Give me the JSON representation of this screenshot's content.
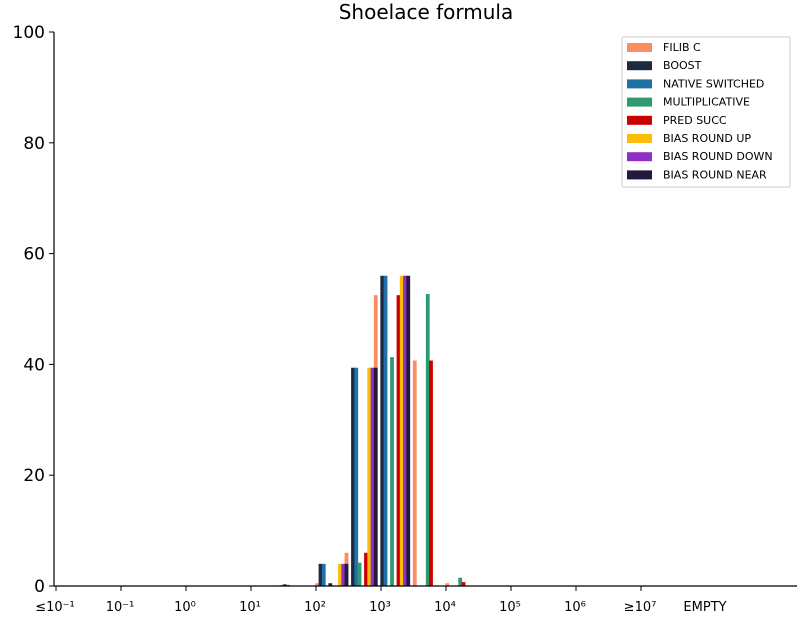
{
  "chart_data": {
    "type": "bar",
    "title": "Shoelace formula",
    "xlabel": "",
    "ylabel": "",
    "ylim": [
      0,
      100
    ],
    "yticks": [
      "0",
      "20",
      "40",
      "60",
      "80",
      "100"
    ],
    "categories": [
      "≤10⁻¹",
      "10⁻¹",
      "10⁰",
      "10¹",
      "10²",
      "10³",
      "10⁴",
      "10⁵",
      "10⁶",
      "≥10⁷",
      "EMPTY"
    ],
    "grid": false,
    "legend_position": "top-right",
    "series": [
      {
        "name": "FILIB C",
        "color": "#fc8d62",
        "points": [
          [
            1.5,
            0.2
          ],
          [
            2.05,
            0.5
          ],
          [
            2.5,
            6.0
          ],
          [
            2.95,
            52.5
          ],
          [
            3.55,
            40.7
          ],
          [
            4.05,
            0.5
          ]
        ]
      },
      {
        "name": "BOOST",
        "color": "#1b2a41",
        "points": [
          [
            1.55,
            0.3
          ],
          [
            2.1,
            4.0
          ],
          [
            2.6,
            39.4
          ],
          [
            3.05,
            56.0
          ]
        ]
      },
      {
        "name": "NATIVE SWITCHED",
        "color": "#2171a8",
        "points": [
          [
            1.6,
            0.2
          ],
          [
            2.15,
            4.0
          ],
          [
            2.65,
            39.4
          ],
          [
            3.1,
            56.0
          ]
        ]
      },
      {
        "name": "MULTIPLICATIVE",
        "color": "#2e9a6f",
        "points": [
          [
            2.7,
            4.2
          ],
          [
            3.2,
            41.3
          ],
          [
            3.75,
            52.7
          ],
          [
            4.25,
            1.5
          ]
        ]
      },
      {
        "name": "PRED SUCC",
        "color": "#cc0000",
        "points": [
          [
            2.8,
            6.0
          ],
          [
            3.3,
            52.5
          ],
          [
            3.8,
            40.7
          ],
          [
            4.3,
            0.7
          ]
        ]
      },
      {
        "name": "BIAS ROUND UP",
        "color": "#fbbc05",
        "points": [
          [
            2.4,
            4.0
          ],
          [
            2.85,
            39.4
          ],
          [
            3.35,
            56.0
          ]
        ]
      },
      {
        "name": "BIAS ROUND DOWN",
        "color": "#8e2fc7",
        "points": [
          [
            2.45,
            4.0
          ],
          [
            2.9,
            39.4
          ],
          [
            3.4,
            56.0
          ]
        ]
      },
      {
        "name": "BIAS ROUND NEAR",
        "color": "#24193d",
        "points": [
          [
            2.25,
            0.5
          ],
          [
            2.5,
            4.0
          ],
          [
            2.95,
            39.4
          ],
          [
            3.45,
            56.0
          ]
        ]
      }
    ]
  }
}
